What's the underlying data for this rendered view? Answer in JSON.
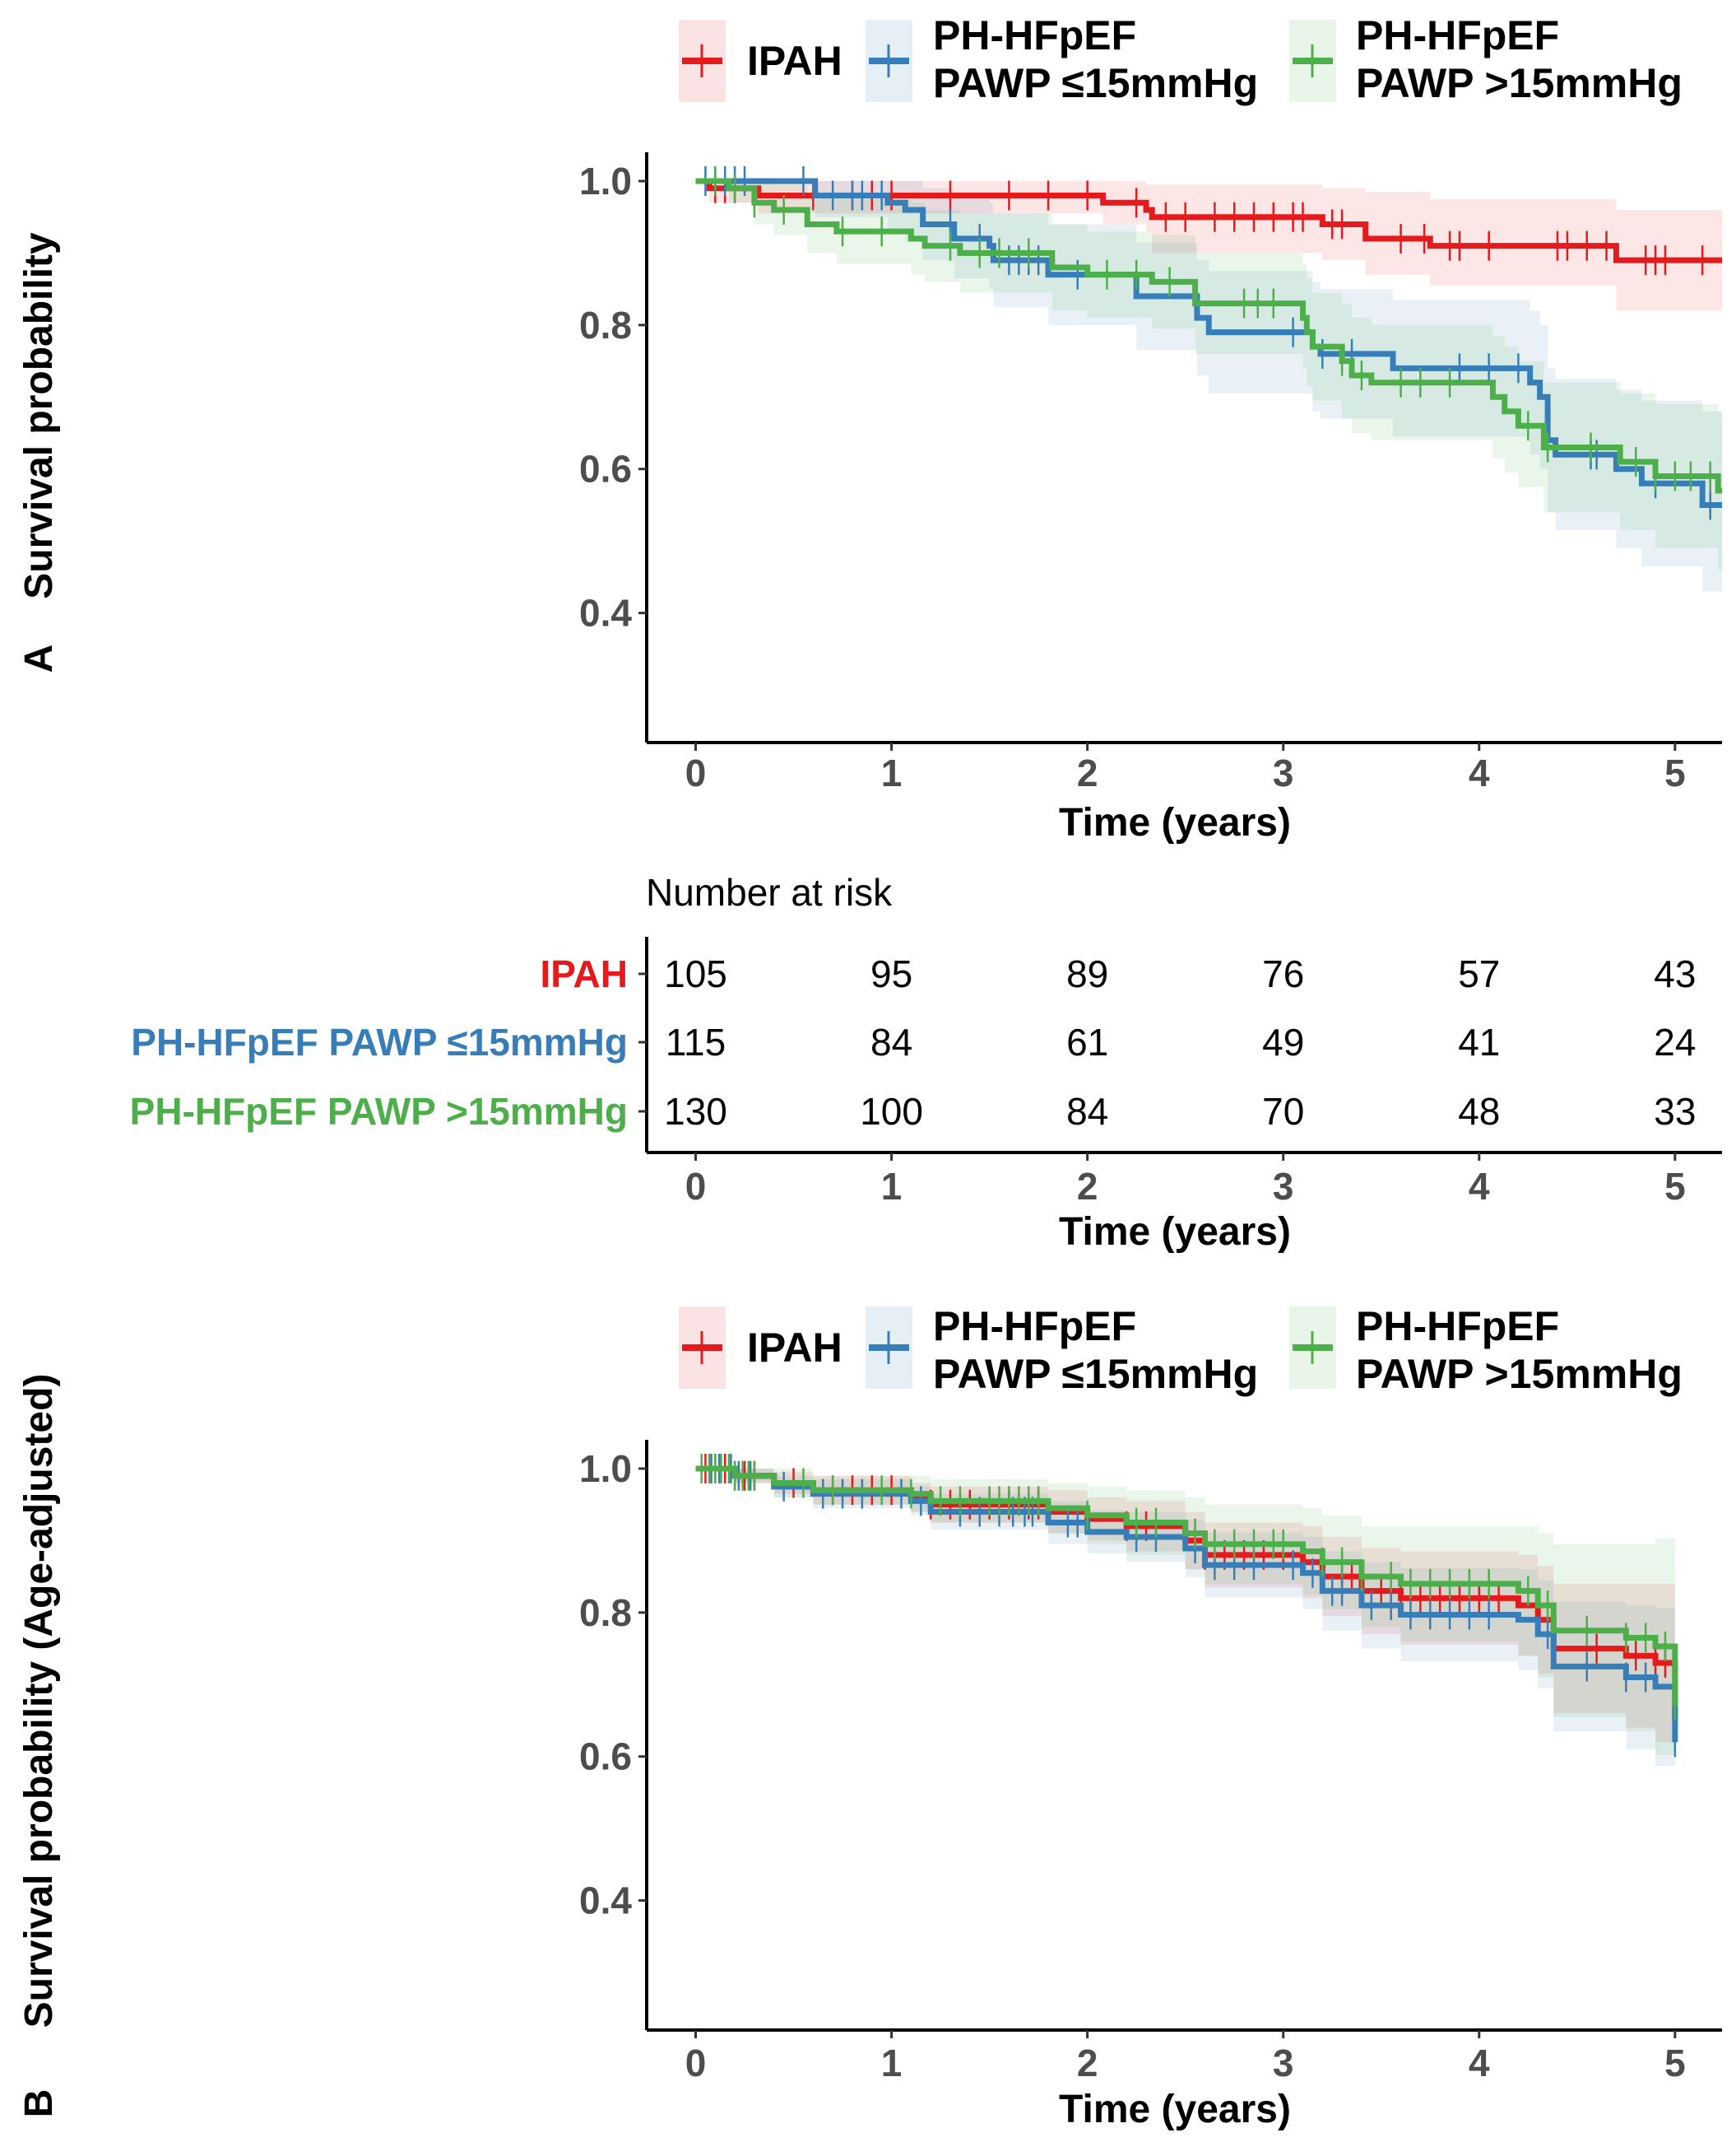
{
  "chart_data": [
    {
      "type": "line",
      "subtype": "kaplan-meier",
      "panel_label": "A",
      "xlabel": "Time (years)",
      "ylabel": "Survival probability",
      "xlim": [
        -0.25,
        5.24
      ],
      "ylim": [
        0.22,
        1.04
      ],
      "xticks": [
        "0",
        "1",
        "2",
        "3",
        "4",
        "5"
      ],
      "yticks": [
        "0.4",
        "0.6",
        "0.8",
        "1.0"
      ],
      "grid": false,
      "legend_placement": "top",
      "series": [
        {
          "name_line1": "IPAH",
          "name_line2": "",
          "color": "#E41A1C",
          "times": [
            0,
            0.07,
            0.32,
            2.08,
            2.3,
            2.33,
            3.2,
            3.42,
            3.75,
            4.7
          ],
          "surv": [
            1,
            0.99,
            0.98,
            0.97,
            0.96,
            0.95,
            0.94,
            0.92,
            0.91,
            0.89
          ],
          "ci_lower": [
            1,
            0.97,
            0.955,
            0.94,
            0.93,
            0.9,
            0.89,
            0.87,
            0.855,
            0.82
          ],
          "ci_upper": [
            1,
            1,
            1,
            1,
            0.995,
            0.995,
            0.99,
            0.985,
            0.975,
            0.96
          ],
          "censored": [
            0.1,
            0.15,
            0.2,
            0.6,
            0.8,
            0.9,
            1.0,
            1.3,
            1.6,
            1.8,
            2.0,
            2.25,
            2.4,
            2.5,
            2.65,
            2.75,
            2.85,
            2.95,
            3.05,
            3.1,
            3.25,
            3.3,
            3.6,
            3.72,
            3.85,
            3.9,
            4.05,
            4.4,
            4.45,
            4.55,
            4.65,
            4.85,
            4.9,
            4.95,
            5.14
          ]
        },
        {
          "name_line1": "PH-HFpEF",
          "name_line2": "PAWP ≤15mmHg",
          "color": "#377EB8",
          "times": [
            0,
            0.61,
            0.98,
            1.07,
            1.16,
            1.32,
            1.5,
            1.52,
            1.8,
            2.25,
            2.56,
            2.62,
            3.15,
            3.19,
            3.56,
            4.26,
            4.31,
            4.35,
            4.39,
            4.7,
            4.83,
            5.14
          ],
          "surv": [
            1,
            0.98,
            0.97,
            0.96,
            0.94,
            0.92,
            0.91,
            0.89,
            0.87,
            0.84,
            0.81,
            0.79,
            0.77,
            0.76,
            0.74,
            0.72,
            0.7,
            0.64,
            0.62,
            0.6,
            0.58,
            0.55
          ],
          "ci_lower": [
            1,
            0.95,
            0.93,
            0.915,
            0.89,
            0.865,
            0.85,
            0.825,
            0.8,
            0.765,
            0.73,
            0.705,
            0.68,
            0.67,
            0.645,
            0.62,
            0.6,
            0.54,
            0.515,
            0.49,
            0.465,
            0.43
          ],
          "ci_upper": [
            1,
            1,
            1,
            1,
            0.99,
            0.975,
            0.97,
            0.955,
            0.94,
            0.915,
            0.89,
            0.875,
            0.86,
            0.85,
            0.835,
            0.82,
            0.8,
            0.74,
            0.725,
            0.71,
            0.695,
            0.68
          ],
          "censored": [
            0.05,
            0.1,
            0.15,
            0.2,
            0.25,
            0.55,
            0.7,
            0.8,
            0.85,
            0.95,
            1.3,
            1.45,
            1.6,
            1.65,
            1.7,
            1.75,
            1.95,
            2.55,
            3.05,
            3.2,
            3.35,
            3.9,
            4.05,
            4.2,
            4.35,
            4.57,
            4.6,
            4.9,
            5.18
          ]
        },
        {
          "name_line1": "PH-HFpEF",
          "name_line2": "PAWP >15mmHg",
          "color": "#4DAF4A",
          "times": [
            0,
            0.17,
            0.3,
            0.4,
            0.57,
            0.72,
            1.1,
            1.17,
            1.35,
            1.82,
            2.0,
            2.33,
            2.55,
            3.1,
            3.12,
            3.15,
            3.3,
            3.35,
            3.45,
            4.07,
            4.13,
            4.2,
            4.33,
            4.72,
            4.9,
            5.22
          ],
          "surv": [
            1,
            0.99,
            0.97,
            0.96,
            0.94,
            0.93,
            0.92,
            0.91,
            0.9,
            0.88,
            0.87,
            0.86,
            0.83,
            0.81,
            0.79,
            0.77,
            0.75,
            0.73,
            0.72,
            0.7,
            0.68,
            0.66,
            0.63,
            0.61,
            0.59,
            0.57
          ],
          "ci_lower": [
            1,
            0.97,
            0.94,
            0.925,
            0.9,
            0.885,
            0.87,
            0.86,
            0.845,
            0.82,
            0.81,
            0.795,
            0.76,
            0.74,
            0.715,
            0.695,
            0.67,
            0.65,
            0.64,
            0.615,
            0.595,
            0.575,
            0.54,
            0.515,
            0.49,
            0.46
          ],
          "ci_upper": [
            1,
            1,
            1,
            0.995,
            0.98,
            0.975,
            0.97,
            0.96,
            0.955,
            0.94,
            0.93,
            0.925,
            0.9,
            0.885,
            0.865,
            0.845,
            0.83,
            0.81,
            0.8,
            0.785,
            0.77,
            0.75,
            0.72,
            0.705,
            0.69,
            0.68
          ],
          "censored": [
            0.1,
            0.2,
            0.3,
            0.45,
            0.75,
            0.95,
            1.3,
            1.45,
            1.55,
            1.7,
            2.1,
            2.25,
            2.42,
            2.8,
            2.87,
            2.95,
            3.3,
            3.4,
            3.6,
            3.7,
            3.85,
            4.25,
            4.35,
            4.57,
            4.8,
            4.9,
            5.0,
            5.08,
            5.18
          ]
        }
      ],
      "end_time": 5.24
    },
    {
      "type": "table",
      "title": "Number at risk",
      "xlabel": "Time (years)",
      "xticks": [
        "0",
        "1",
        "2",
        "3",
        "4",
        "5"
      ],
      "rows": [
        {
          "label": "IPAH",
          "color": "#E41A1C",
          "values": [
            "105",
            "95",
            "89",
            "76",
            "57",
            "43"
          ]
        },
        {
          "label": "PH-HFpEF PAWP ≤15mmHg",
          "color": "#377EB8",
          "values": [
            "115",
            "84",
            "61",
            "49",
            "41",
            "24"
          ]
        },
        {
          "label": "PH-HFpEF PAWP >15mmHg",
          "color": "#4DAF4A",
          "values": [
            "130",
            "100",
            "84",
            "70",
            "48",
            "33"
          ]
        }
      ]
    },
    {
      "type": "line",
      "subtype": "kaplan-meier",
      "panel_label": "B",
      "xlabel": "Time (years)",
      "ylabel": "Survival probability (Age-adjusted)",
      "xlim": [
        -0.25,
        5.24
      ],
      "ylim": [
        0.22,
        1.04
      ],
      "xticks": [
        "0",
        "1",
        "2",
        "3",
        "4",
        "5"
      ],
      "yticks": [
        "0.4",
        "0.6",
        "0.8",
        "1.0"
      ],
      "grid": false,
      "legend_placement": "top",
      "series": [
        {
          "name_line1": "IPAH",
          "name_line2": "",
          "color": "#E41A1C",
          "times": [
            0,
            0.2,
            0.4,
            0.6,
            1.1,
            1.2,
            1.8,
            2.0,
            2.2,
            2.5,
            2.6,
            3.1,
            3.2,
            3.4,
            3.6,
            4.2,
            4.3,
            4.38,
            4.75,
            4.9,
            5.0
          ],
          "surv": [
            1,
            0.99,
            0.98,
            0.97,
            0.96,
            0.95,
            0.94,
            0.93,
            0.92,
            0.9,
            0.88,
            0.87,
            0.85,
            0.83,
            0.82,
            0.81,
            0.79,
            0.75,
            0.74,
            0.73,
            0.65
          ],
          "ci_halfwidth": [
            0,
            0.01,
            0.015,
            0.02,
            0.02,
            0.025,
            0.03,
            0.03,
            0.035,
            0.04,
            0.045,
            0.05,
            0.055,
            0.06,
            0.065,
            0.07,
            0.075,
            0.09,
            0.1,
            0.11,
            0.04
          ],
          "censored": [
            0.05,
            0.1,
            0.15,
            0.2,
            0.25,
            0.3,
            0.5,
            0.7,
            0.8,
            0.9,
            1.0,
            1.2,
            1.3,
            1.4,
            1.5,
            1.6,
            1.7,
            1.75,
            2.0,
            2.2,
            2.3,
            2.6,
            2.7,
            2.8,
            2.9,
            3.0,
            3.2,
            3.3,
            3.35,
            3.5,
            3.6,
            3.7,
            3.8,
            3.9,
            4.0,
            4.1,
            4.3,
            4.6,
            4.8,
            4.9,
            4.95
          ]
        },
        {
          "name_line1": "PH-HFpEF",
          "name_line2": "PAWP ≤15mmHg",
          "color": "#377EB8",
          "times": [
            0,
            0.2,
            0.4,
            0.6,
            1.1,
            1.2,
            1.8,
            2.0,
            2.2,
            2.5,
            2.6,
            3.1,
            3.2,
            3.4,
            3.6,
            4.2,
            4.3,
            4.38,
            4.75,
            4.9,
            5.0
          ],
          "surv": [
            1,
            0.99,
            0.975,
            0.965,
            0.955,
            0.94,
            0.925,
            0.912,
            0.905,
            0.889,
            0.866,
            0.855,
            0.83,
            0.81,
            0.797,
            0.79,
            0.77,
            0.725,
            0.71,
            0.697,
            0.62
          ],
          "ci_halfwidth": [
            0,
            0.01,
            0.015,
            0.02,
            0.02,
            0.025,
            0.03,
            0.03,
            0.035,
            0.04,
            0.045,
            0.05,
            0.055,
            0.06,
            0.065,
            0.07,
            0.075,
            0.09,
            0.1,
            0.11,
            0.03
          ],
          "censored": [
            0.08,
            0.12,
            0.18,
            0.22,
            0.28,
            0.45,
            0.65,
            0.75,
            0.85,
            1.05,
            1.15,
            1.35,
            1.45,
            1.55,
            1.62,
            1.68,
            1.72,
            1.9,
            1.95,
            2.25,
            2.35,
            2.55,
            2.65,
            2.75,
            2.85,
            3.05,
            3.15,
            3.25,
            3.3,
            3.45,
            3.55,
            3.65,
            3.75,
            3.85,
            3.95,
            4.05,
            4.35,
            4.55,
            4.75,
            4.85,
            5.0
          ]
        },
        {
          "name_line1": "PH-HFpEF",
          "name_line2": "PAWP >15mmHg",
          "color": "#4DAF4A",
          "times": [
            0,
            0.2,
            0.4,
            0.6,
            1.1,
            1.2,
            1.8,
            2.0,
            2.2,
            2.5,
            2.6,
            3.1,
            3.2,
            3.4,
            3.6,
            4.2,
            4.3,
            4.38,
            4.75,
            4.9,
            5.0
          ],
          "surv": [
            1,
            0.99,
            0.98,
            0.97,
            0.965,
            0.955,
            0.945,
            0.935,
            0.925,
            0.91,
            0.895,
            0.885,
            0.87,
            0.85,
            0.84,
            0.83,
            0.81,
            0.775,
            0.765,
            0.753,
            0.67
          ],
          "ci_halfwidth": [
            0,
            0.01,
            0.02,
            0.02,
            0.025,
            0.03,
            0.035,
            0.04,
            0.045,
            0.05,
            0.055,
            0.06,
            0.065,
            0.07,
            0.08,
            0.09,
            0.1,
            0.12,
            0.13,
            0.15,
            0.06
          ],
          "censored": [
            0.03,
            0.07,
            0.1,
            0.13,
            0.17,
            0.2,
            0.24,
            0.27,
            0.3,
            0.55,
            0.7,
            0.95,
            1.1,
            1.25,
            1.35,
            1.5,
            1.55,
            1.6,
            1.65,
            1.7,
            1.75,
            2.0,
            2.25,
            2.35,
            2.55,
            2.65,
            2.75,
            2.85,
            2.95,
            3.0,
            3.2,
            3.3,
            3.4,
            3.55,
            3.65,
            3.75,
            3.85,
            3.95,
            4.05,
            4.25,
            4.35,
            4.55,
            4.75,
            4.85,
            4.95,
            5.0
          ]
        }
      ],
      "end_time": 5.0
    }
  ]
}
